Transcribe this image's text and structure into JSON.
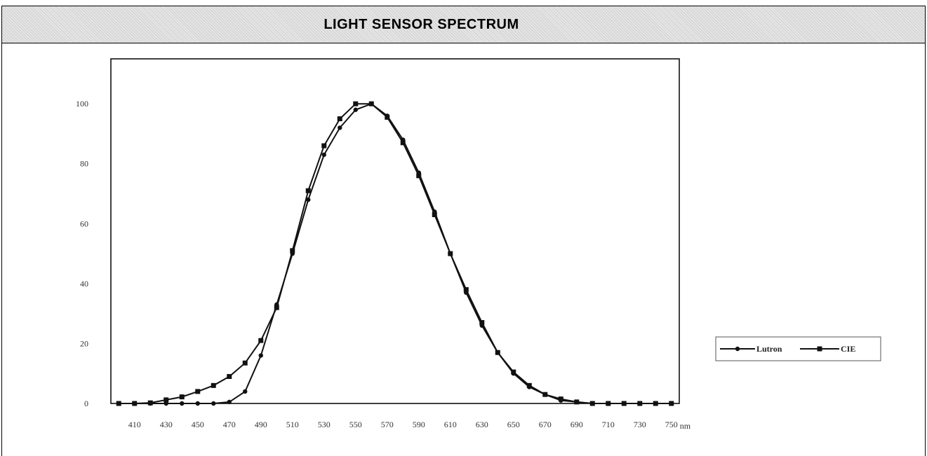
{
  "title": "LIGHT SENSOR SPECTRUM",
  "chart_data": {
    "type": "line",
    "title": "LIGHT SENSOR SPECTRUM",
    "xlabel": "",
    "ylabel": "",
    "x_unit": "nm",
    "x_ticks": [
      410,
      430,
      450,
      470,
      490,
      510,
      530,
      550,
      570,
      590,
      610,
      630,
      650,
      670,
      690,
      710,
      730,
      750
    ],
    "y_ticks": [
      0,
      20,
      40,
      60,
      80,
      100
    ],
    "y_tick_labels": [
      "0",
      "20",
      "40",
      "60",
      "80",
      "100"
    ],
    "xlim": [
      395,
      755
    ],
    "ylim": [
      0,
      115
    ],
    "grid": false,
    "legend_position": "right",
    "x": [
      400,
      410,
      420,
      430,
      440,
      450,
      460,
      470,
      480,
      490,
      500,
      510,
      520,
      530,
      540,
      550,
      560,
      570,
      580,
      590,
      600,
      610,
      620,
      630,
      640,
      650,
      660,
      670,
      680,
      690,
      700,
      710,
      720,
      730,
      740,
      750
    ],
    "series": [
      {
        "name": "Lutron",
        "color": "#111111",
        "marker": "circle",
        "values": [
          0,
          0,
          0,
          0,
          0,
          0,
          0,
          0.5,
          4,
          16,
          33,
          50,
          68,
          83,
          92,
          98,
          100,
          96,
          88,
          77,
          64,
          50,
          37,
          26,
          17,
          10,
          5.5,
          3,
          1,
          0.5,
          0,
          0,
          0,
          0,
          0,
          0
        ]
      },
      {
        "name": "CIE",
        "color": "#111111",
        "marker": "square",
        "values": [
          0,
          0,
          0.2,
          1.2,
          2.2,
          4,
          6,
          9,
          13.5,
          21,
          32,
          51,
          71,
          86,
          95,
          100,
          100,
          95.5,
          87,
          76,
          63,
          50,
          38,
          27,
          17,
          10.5,
          6,
          3,
          1.5,
          0.5,
          0,
          0,
          0,
          0,
          0,
          0
        ]
      }
    ]
  }
}
